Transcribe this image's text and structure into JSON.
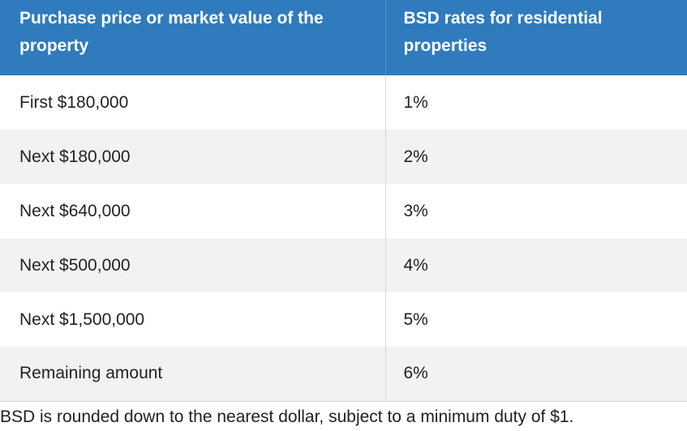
{
  "table": {
    "headers": [
      "Purchase price or market value of the property",
      "BSD rates for residential properties"
    ],
    "rows": [
      {
        "amount": "First $180,000",
        "rate": "1%"
      },
      {
        "amount": "Next $180,000",
        "rate": "2%"
      },
      {
        "amount": "Next $640,000",
        "rate": "3%"
      },
      {
        "amount": "Next $500,000",
        "rate": "4%"
      },
      {
        "amount": "Next $1,500,000",
        "rate": "5%"
      },
      {
        "amount": "Remaining amount",
        "rate": "6%"
      }
    ]
  },
  "note": "BSD is rounded down to the nearest dollar, subject to a minimum duty of $1.",
  "colors": {
    "header_bg": "#2f7bbd",
    "stripe_bg": "#f2f2f2"
  }
}
